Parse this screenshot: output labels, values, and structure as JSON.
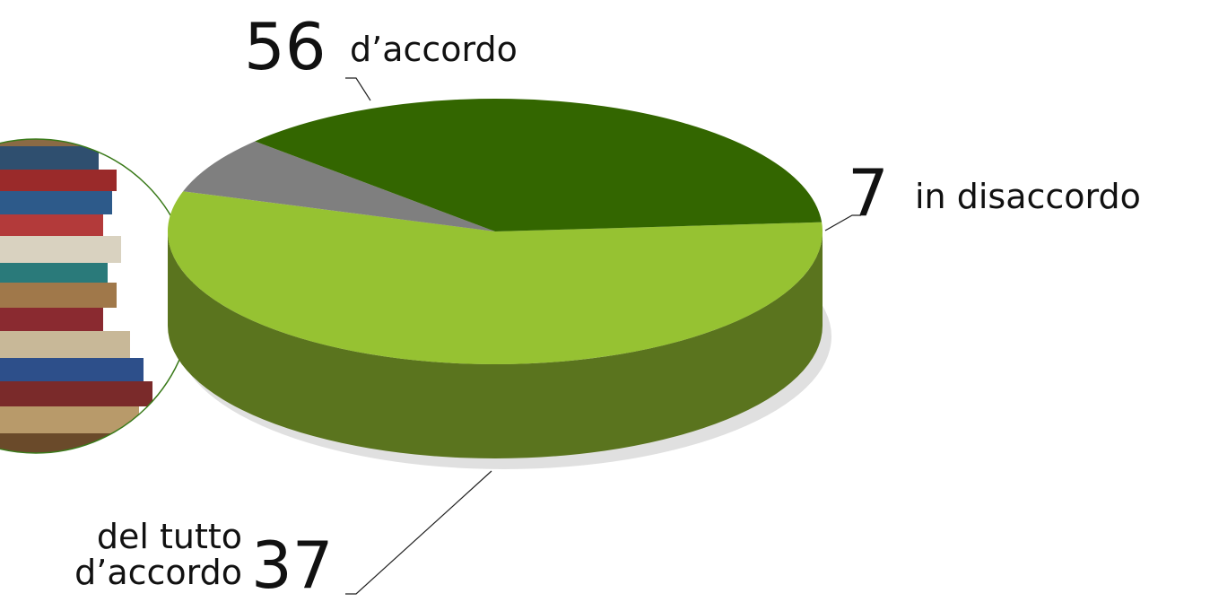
{
  "chart_data": {
    "type": "pie",
    "categories": [
      "d’accordo",
      "in disaccordo",
      "del tutto d’accordo"
    ],
    "values": [
      56,
      7,
      37
    ],
    "colors": [
      "#96c232",
      "#7f7f7f",
      "#336600"
    ]
  }
}
